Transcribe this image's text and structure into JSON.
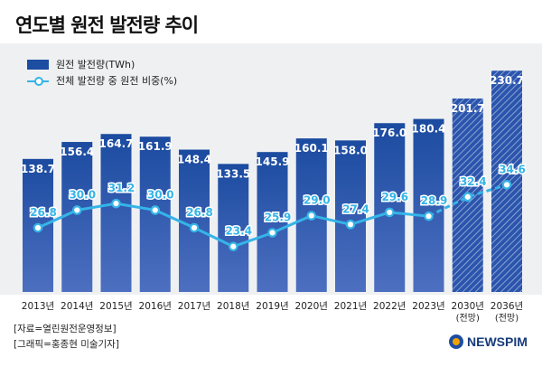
{
  "title": "연도별 원전 발전량 추이",
  "legend": {
    "bar_label": "원전 발전량(TWh)",
    "line_label": "전체 발전량 중 원전 비중(%)"
  },
  "chart_data": {
    "type": "bar",
    "title": "연도별 원전 발전량 추이",
    "categories": [
      "2013년",
      "2014년",
      "2015년",
      "2016년",
      "2017년",
      "2018년",
      "2019년",
      "2020년",
      "2021년",
      "2022년",
      "2023년",
      "2030년",
      "2036년"
    ],
    "category_sublabels": [
      "",
      "",
      "",
      "",
      "",
      "",
      "",
      "",
      "",
      "",
      "",
      "(전망)",
      "(전망)"
    ],
    "series": [
      {
        "name": "원전 발전량(TWh)",
        "type": "bar",
        "values": [
          138.7,
          156.4,
          164.7,
          161.9,
          148.4,
          133.5,
          145.9,
          160.1,
          158.0,
          176.0,
          180.4,
          201.7,
          230.7
        ],
        "value_labels": [
          "138.7",
          "156.4",
          "164.7",
          "161.9",
          "148.4",
          "133.5",
          "145.9",
          "160.1",
          "158.0",
          "176.0",
          "180.4",
          "201.7",
          "230.7"
        ]
      },
      {
        "name": "전체 발전량 중 원전 비중(%)",
        "type": "line",
        "values": [
          26.8,
          30.0,
          31.2,
          30.0,
          26.8,
          23.4,
          25.9,
          29.0,
          27.4,
          29.6,
          28.9,
          32.4,
          34.6
        ],
        "value_labels": [
          "26.8",
          "30.0",
          "31.2",
          "30.0",
          "26.8",
          "23.4",
          "25.9",
          "29.0",
          "27.4",
          "29.6",
          "28.9",
          "32.4",
          "34.6"
        ]
      }
    ],
    "projected_categories": [
      "2030년",
      "2036년"
    ],
    "colors": {
      "bar_top": "#1b4ba0",
      "bar_bottom": "#4d6fc0",
      "projected_stripe": "#2b55ad",
      "line": "#35b4e8",
      "marker_fill": "#ffffff",
      "panel": "#eef0f2",
      "value_text": "#ffffff"
    }
  },
  "source": {
    "line1": "[자료=열린원전운영정보]",
    "line2": "[그래픽=홍종현 미술기자]"
  },
  "logo": {
    "text": "NEWSPIM"
  }
}
